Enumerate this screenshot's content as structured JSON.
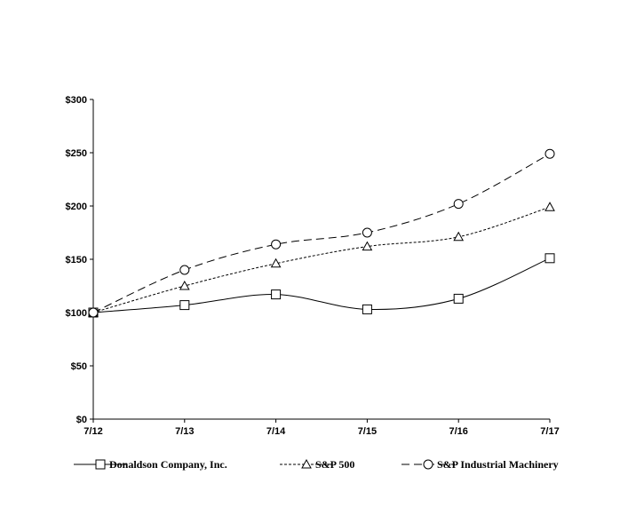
{
  "chart_data": {
    "type": "line",
    "title": "",
    "xlabel": "",
    "ylabel": "",
    "categories": [
      "7/12",
      "7/13",
      "7/14",
      "7/15",
      "7/16",
      "7/17"
    ],
    "ylim": [
      0,
      300
    ],
    "yticks": [
      0,
      50,
      100,
      150,
      200,
      250,
      300
    ],
    "ytick_labels": [
      "$0",
      "$50",
      "$100",
      "$150",
      "$200",
      "$250",
      "$300"
    ],
    "grid": false,
    "legend_position": "bottom",
    "series": [
      {
        "name": "Donaldson Company, Inc.",
        "values": [
          100,
          107,
          117,
          103,
          113,
          151
        ],
        "marker": "square",
        "line_style": "solid",
        "color": "#000000"
      },
      {
        "name": "S&P 500",
        "values": [
          100,
          125,
          146,
          162,
          171,
          199
        ],
        "marker": "triangle",
        "line_style": "dotted",
        "color": "#000000"
      },
      {
        "name": "S&P Industrial Machinery",
        "values": [
          100,
          140,
          164,
          175,
          202,
          249
        ],
        "marker": "circle",
        "line_style": "dashed",
        "color": "#000000"
      }
    ]
  }
}
